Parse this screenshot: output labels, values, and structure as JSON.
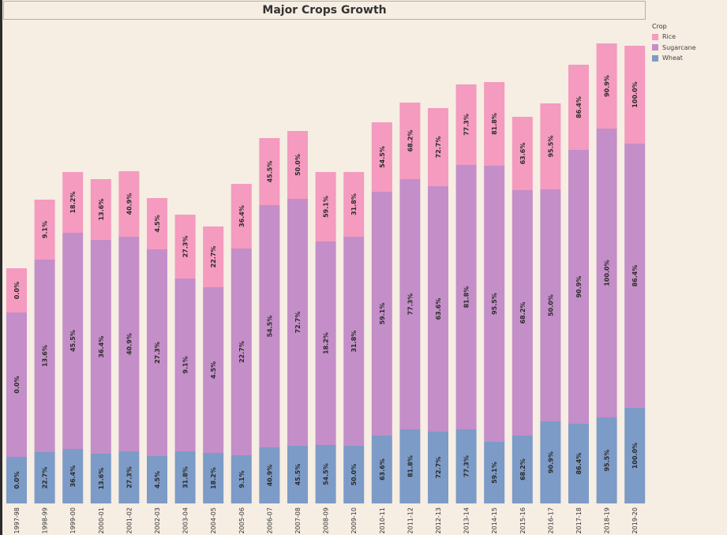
{
  "title": "Major Crops Growth",
  "legend": {
    "title": "Crop",
    "items": [
      {
        "label": "Rice",
        "color": "#f49bbf"
      },
      {
        "label": "Sugarcane",
        "color": "#c48ec8"
      },
      {
        "label": "Wheat",
        "color": "#7c9bc7"
      }
    ]
  },
  "chart_data": {
    "type": "bar",
    "stacked": true,
    "title": "Major Crops Growth",
    "categories": [
      "1997-98",
      "1998-99",
      "1999-00",
      "2000-01",
      "2001-02",
      "2002-03",
      "2003-04",
      "2004-05",
      "2005-06",
      "2006-07",
      "2007-08",
      "2008-09",
      "2009-10",
      "2010-11",
      "2011-12",
      "2012-13",
      "2013-14",
      "2014-15",
      "2015-16",
      "2016-17",
      "2017-18",
      "2018-19",
      "2019-20"
    ],
    "series": [
      {
        "name": "Wheat",
        "color": "#7c9bc7",
        "values": [
          59,
          65,
          69,
          63,
          66,
          60,
          66,
          64,
          61,
          71,
          73,
          74,
          73,
          86,
          94,
          91,
          94,
          78,
          86,
          104,
          101,
          109,
          121
        ],
        "labels": [
          "0.0%",
          "22.7%",
          "36.4%",
          "13.6%",
          "27.3%",
          "4.5%",
          "31.8%",
          "18.2%",
          "9.1%",
          "40.9%",
          "45.5%",
          "54.5%",
          "50.0%",
          "63.6%",
          "81.8%",
          "72.7%",
          "77.3%",
          "59.1%",
          "68.2%",
          "90.9%",
          "86.4%",
          "95.5%",
          "100.0%"
        ]
      },
      {
        "name": "Sugarcane",
        "color": "#c48ec8",
        "values": [
          183,
          244,
          274,
          271,
          272,
          262,
          219,
          210,
          262,
          307,
          313,
          258,
          265,
          309,
          317,
          311,
          335,
          350,
          311,
          294,
          347,
          366,
          335
        ],
        "labels": [
          "0.0%",
          "13.6%",
          "45.5%",
          "36.4%",
          "40.9%",
          "27.3%",
          "9.1%",
          "4.5%",
          "22.7%",
          "54.5%",
          "72.7%",
          "18.2%",
          "31.8%",
          "59.1%",
          "77.3%",
          "63.6%",
          "81.8%",
          "95.5%",
          "68.2%",
          "50.0%",
          "90.9%",
          "100.0%",
          "86.4%"
        ]
      },
      {
        "name": "Rice",
        "color": "#f49bbf",
        "values": [
          56,
          76,
          77,
          77,
          83,
          65,
          81,
          77,
          82,
          85,
          86,
          88,
          82,
          88,
          97,
          99,
          102,
          106,
          93,
          109,
          108,
          108,
          124
        ],
        "labels": [
          "0.0%",
          "9.1%",
          "18.2%",
          "13.6%",
          "40.9%",
          "4.5%",
          "27.3%",
          "22.7%",
          "36.4%",
          "45.5%",
          "50.0%",
          "59.1%",
          "31.8%",
          "54.5%",
          "68.2%",
          "72.7%",
          "77.3%",
          "81.8%",
          "63.6%",
          "95.5%",
          "86.4%",
          "90.9%",
          "100.0%"
        ]
      }
    ],
    "ylim": [
      0,
      600
    ],
    "xlabel": "",
    "ylabel": "",
    "grid": false,
    "legend_position": "top-right"
  }
}
